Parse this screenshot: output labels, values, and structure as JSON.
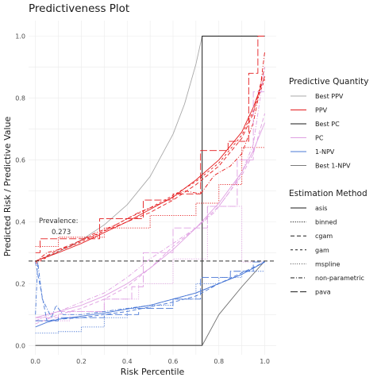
{
  "chart_data": {
    "type": "line",
    "title": "Predictiveness Plot",
    "xlabel": "Risk Percentile",
    "ylabel": "Predicted Risk / Predictive Value",
    "xlim": [
      -0.03,
      1.05
    ],
    "ylim": [
      -0.03,
      1.05
    ],
    "x_ticks": [
      0.0,
      0.2,
      0.4,
      0.6,
      0.8,
      1.0
    ],
    "x_tick_labels": [
      "0.0",
      "0.2",
      "0.4",
      "0.6",
      "0.8",
      "1.0"
    ],
    "y_ticks": [
      0.0,
      0.2,
      0.4,
      0.6,
      0.8,
      1.0
    ],
    "y_tick_labels": [
      "0.0",
      "0.2",
      "0.4",
      "0.6",
      "0.8",
      "1.0"
    ],
    "grid": true,
    "prevalence": 0.273,
    "annotation": {
      "label": "Prevalence:",
      "value": "0.273"
    },
    "legend_quantity": {
      "title": "Predictive Quantity",
      "items": [
        {
          "label": "Best PPV",
          "color": "#a8a8a8"
        },
        {
          "label": "PPV",
          "color": "#e41a1c"
        },
        {
          "label": "Best PC",
          "color": "#1a1a1a"
        },
        {
          "label": "PC",
          "color": "#dfa0e2"
        },
        {
          "label": "1-NPV",
          "color": "#4a78d6"
        },
        {
          "label": "Best 1-NPV",
          "color": "#7a7a7a"
        }
      ]
    },
    "legend_method": {
      "title": "Estimation Method",
      "items": [
        {
          "label": "asis",
          "dash": ""
        },
        {
          "label": "binned",
          "dash": "1.2,1.6"
        },
        {
          "label": "cgam",
          "dash": "5,3"
        },
        {
          "label": "gam",
          "dash": "3,3"
        },
        {
          "label": "mspline",
          "dash": "0.8,2"
        },
        {
          "label": "non-parametric",
          "dash": "5,2,1,2"
        },
        {
          "label": "pava",
          "dash": "9,3"
        }
      ]
    },
    "series": [
      {
        "name": "Best PPV",
        "color": "#a8a8a8",
        "dash": "",
        "width": 0.9,
        "x": [
          0.0,
          0.1,
          0.2,
          0.3,
          0.4,
          0.5,
          0.6,
          0.65,
          0.7,
          0.727,
          1.0
        ],
        "y": [
          0.273,
          0.303,
          0.341,
          0.39,
          0.455,
          0.546,
          0.683,
          0.78,
          0.91,
          1.0,
          1.0
        ]
      },
      {
        "name": "Best PC",
        "color": "#1a1a1a",
        "dash": "",
        "width": 1.0,
        "x": [
          0.0,
          0.727,
          0.727,
          1.0
        ],
        "y": [
          0.0,
          0.0,
          1.0,
          1.0
        ]
      },
      {
        "name": "Best 1-NPV",
        "color": "#6e6e6e",
        "dash": "",
        "width": 0.9,
        "x": [
          0.0,
          0.727,
          0.8,
          0.9,
          1.0
        ],
        "y": [
          0.0,
          0.0,
          0.1,
          0.19,
          0.273
        ]
      },
      {
        "name": "PPV",
        "color": "#e41a1c",
        "dash": "",
        "width": 0.9,
        "x": [
          0.0,
          0.1,
          0.2,
          0.3,
          0.4,
          0.5,
          0.6,
          0.7,
          0.8,
          0.9,
          0.95,
          1.0
        ],
        "y": [
          0.273,
          0.3,
          0.33,
          0.365,
          0.4,
          0.44,
          0.48,
          0.535,
          0.6,
          0.69,
          0.77,
          0.87
        ]
      },
      {
        "name": "PPV",
        "color": "#e41a1c",
        "dash": "5,3",
        "width": 0.9,
        "x": [
          0.0,
          0.1,
          0.2,
          0.3,
          0.4,
          0.5,
          0.6,
          0.7,
          0.8,
          0.9,
          0.95,
          1.0
        ],
        "y": [
          0.27,
          0.31,
          0.34,
          0.37,
          0.4,
          0.43,
          0.47,
          0.52,
          0.58,
          0.67,
          0.75,
          0.9
        ]
      },
      {
        "name": "PPV",
        "color": "#e41a1c",
        "dash": "3,3",
        "width": 0.9,
        "x": [
          0.0,
          0.1,
          0.2,
          0.3,
          0.4,
          0.5,
          0.6,
          0.7,
          0.8,
          0.9,
          0.95,
          1.0
        ],
        "y": [
          0.265,
          0.305,
          0.335,
          0.37,
          0.41,
          0.445,
          0.485,
          0.53,
          0.59,
          0.68,
          0.76,
          0.86
        ]
      },
      {
        "name": "PPV",
        "color": "#e41a1c",
        "dash": "9,3",
        "width": 0.9,
        "x": [
          0.0,
          0.02,
          0.02,
          0.28,
          0.28,
          0.47,
          0.47,
          0.6,
          0.6,
          0.72,
          0.72,
          0.84,
          0.84,
          0.93,
          0.93,
          0.97,
          0.97,
          1.0
        ],
        "y": [
          0.3,
          0.3,
          0.345,
          0.345,
          0.41,
          0.41,
          0.47,
          0.47,
          0.49,
          0.49,
          0.63,
          0.63,
          0.66,
          0.66,
          0.88,
          0.88,
          1.0,
          1.0
        ]
      },
      {
        "name": "PPV",
        "color": "#e41a1c",
        "dash": "1.2,1.6",
        "width": 0.9,
        "x": [
          0.0,
          0.1,
          0.1,
          0.3,
          0.3,
          0.5,
          0.5,
          0.7,
          0.7,
          0.8,
          0.8,
          0.9,
          0.9,
          1.0
        ],
        "y": [
          0.32,
          0.32,
          0.35,
          0.35,
          0.38,
          0.38,
          0.42,
          0.42,
          0.46,
          0.46,
          0.52,
          0.52,
          0.64,
          0.64
        ]
      },
      {
        "name": "PPV",
        "color": "#e41a1c",
        "dash": "5,2,1,2",
        "width": 0.9,
        "x": [
          0.0,
          0.05,
          0.15,
          0.25,
          0.35,
          0.45,
          0.55,
          0.65,
          0.72,
          0.78,
          0.85,
          0.9,
          0.95,
          0.98,
          1.0
        ],
        "y": [
          0.27,
          0.3,
          0.32,
          0.36,
          0.39,
          0.43,
          0.46,
          0.5,
          0.49,
          0.55,
          0.58,
          0.62,
          0.72,
          0.83,
          0.95
        ]
      },
      {
        "name": "PC",
        "color": "#dfa0e2",
        "dash": "",
        "width": 0.9,
        "x": [
          0.0,
          0.1,
          0.2,
          0.3,
          0.4,
          0.5,
          0.6,
          0.7,
          0.8,
          0.9,
          0.95,
          1.0
        ],
        "y": [
          0.09,
          0.11,
          0.13,
          0.16,
          0.2,
          0.25,
          0.31,
          0.38,
          0.46,
          0.56,
          0.63,
          0.72
        ]
      },
      {
        "name": "PC",
        "color": "#dfa0e2",
        "dash": "5,3",
        "width": 0.9,
        "x": [
          0.0,
          0.1,
          0.2,
          0.3,
          0.4,
          0.5,
          0.6,
          0.7,
          0.8,
          0.9,
          0.95,
          1.0
        ],
        "y": [
          0.07,
          0.1,
          0.12,
          0.15,
          0.19,
          0.25,
          0.32,
          0.38,
          0.45,
          0.55,
          0.62,
          0.75
        ]
      },
      {
        "name": "PC",
        "color": "#dfa0e2",
        "dash": "9,3",
        "width": 0.9,
        "x": [
          0.0,
          0.1,
          0.1,
          0.3,
          0.3,
          0.42,
          0.42,
          0.47,
          0.47,
          0.6,
          0.6,
          0.75,
          0.75,
          0.88,
          0.88,
          0.95,
          0.95,
          1.0
        ],
        "y": [
          0.09,
          0.09,
          0.11,
          0.11,
          0.15,
          0.15,
          0.19,
          0.19,
          0.3,
          0.3,
          0.38,
          0.38,
          0.45,
          0.45,
          0.6,
          0.6,
          0.82,
          0.82
        ]
      },
      {
        "name": "PC",
        "color": "#dfa0e2",
        "dash": "1.2,1.6",
        "width": 0.9,
        "x": [
          0.0,
          0.15,
          0.15,
          0.3,
          0.3,
          0.45,
          0.45,
          0.6,
          0.6,
          0.75,
          0.75,
          0.9,
          0.9,
          1.0
        ],
        "y": [
          0.08,
          0.08,
          0.11,
          0.11,
          0.15,
          0.15,
          0.2,
          0.2,
          0.28,
          0.28,
          0.45,
          0.45,
          0.27,
          0.27
        ]
      },
      {
        "name": "PC",
        "color": "#dfa0e2",
        "dash": "5,2,1,2",
        "width": 0.9,
        "x": [
          0.0,
          0.1,
          0.2,
          0.3,
          0.4,
          0.5,
          0.6,
          0.7,
          0.78,
          0.85,
          0.9,
          0.95,
          1.0
        ],
        "y": [
          0.08,
          0.11,
          0.14,
          0.17,
          0.22,
          0.28,
          0.33,
          0.38,
          0.43,
          0.5,
          0.56,
          0.65,
          0.9
        ]
      },
      {
        "name": "1-NPV",
        "color": "#4a78d6",
        "dash": "",
        "width": 0.9,
        "x": [
          0.0,
          0.05,
          0.1,
          0.2,
          0.3,
          0.4,
          0.5,
          0.6,
          0.7,
          0.8,
          0.9,
          1.0
        ],
        "y": [
          0.06,
          0.075,
          0.085,
          0.095,
          0.105,
          0.118,
          0.13,
          0.15,
          0.17,
          0.2,
          0.23,
          0.27
        ]
      },
      {
        "name": "1-NPV",
        "color": "#4a78d6",
        "dash": "5,3",
        "width": 0.9,
        "x": [
          0.0,
          0.05,
          0.1,
          0.2,
          0.3,
          0.4,
          0.5,
          0.6,
          0.7,
          0.8,
          0.9,
          1.0
        ],
        "y": [
          0.27,
          0.08,
          0.085,
          0.09,
          0.1,
          0.11,
          0.125,
          0.14,
          0.16,
          0.2,
          0.235,
          0.27
        ]
      },
      {
        "name": "1-NPV",
        "color": "#4a78d6",
        "dash": "9,3",
        "width": 0.9,
        "x": [
          0.0,
          0.1,
          0.1,
          0.3,
          0.3,
          0.45,
          0.45,
          0.6,
          0.6,
          0.72,
          0.72,
          0.85,
          0.85,
          0.95,
          0.95,
          1.0
        ],
        "y": [
          0.08,
          0.08,
          0.09,
          0.09,
          0.1,
          0.1,
          0.12,
          0.12,
          0.15,
          0.15,
          0.22,
          0.22,
          0.24,
          0.24,
          0.27,
          0.27
        ]
      },
      {
        "name": "1-NPV",
        "color": "#4a78d6",
        "dash": "1.2,1.6",
        "width": 0.9,
        "x": [
          0.0,
          0.1,
          0.1,
          0.2,
          0.2,
          0.3,
          0.3,
          0.4,
          0.4,
          0.5,
          0.5,
          0.6,
          0.6,
          0.7,
          0.7,
          0.8,
          0.8,
          0.9,
          0.9,
          1.0
        ],
        "y": [
          0.04,
          0.04,
          0.045,
          0.045,
          0.06,
          0.06,
          0.09,
          0.09,
          0.12,
          0.12,
          0.13,
          0.13,
          0.15,
          0.15,
          0.2,
          0.2,
          0.22,
          0.22,
          0.24,
          0.24
        ]
      },
      {
        "name": "1-NPV",
        "color": "#4a78d6",
        "dash": "5,2,1,2",
        "width": 0.9,
        "x": [
          0.0,
          0.01,
          0.03,
          0.05,
          0.07,
          0.09,
          0.12,
          0.2,
          0.3,
          0.4,
          0.5,
          0.6,
          0.7,
          0.8,
          0.9,
          1.0
        ],
        "y": [
          0.1,
          0.27,
          0.15,
          0.12,
          0.09,
          0.13,
          0.1,
          0.1,
          0.11,
          0.12,
          0.13,
          0.15,
          0.17,
          0.2,
          0.23,
          0.27
        ]
      }
    ]
  }
}
